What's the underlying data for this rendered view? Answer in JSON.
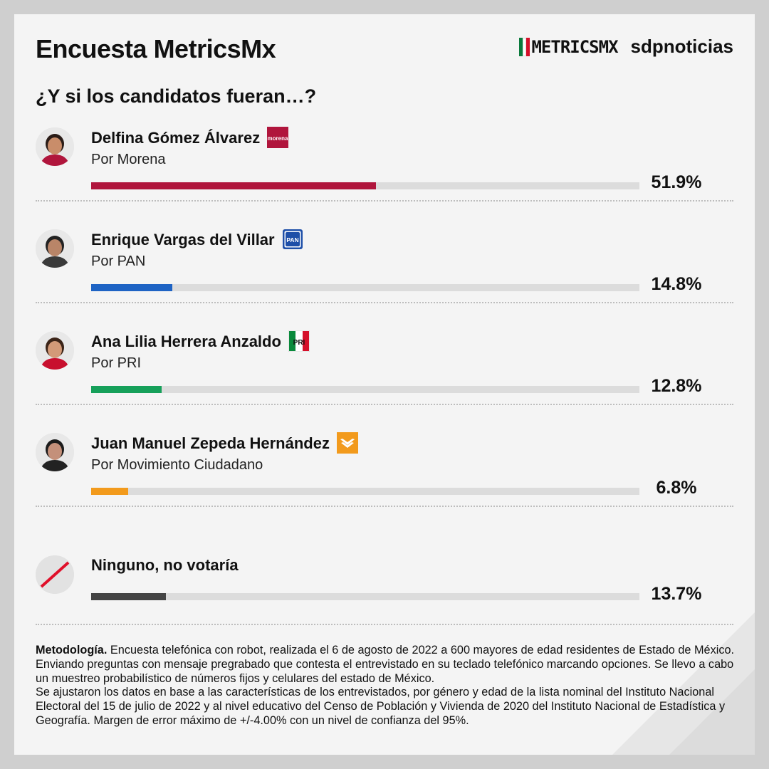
{
  "header": {
    "title": "Encuesta MetricsMx",
    "subtitle": "¿Y si los candidatos fueran…?",
    "logo_metrics": "METRICSMX",
    "logo_sdp": "sdpnoticias",
    "flag_colors": [
      "#0a7a3c",
      "#ffffff",
      "#d5102a"
    ]
  },
  "chart_data": {
    "type": "bar",
    "orientation": "horizontal",
    "xlim": [
      0,
      100
    ],
    "categories": [
      "Delfina Gómez Álvarez",
      "Enrique Vargas del Villar",
      "Ana Lilia Herrera Anzaldo",
      "Juan Manuel Zepeda Hernández",
      "Ninguno, no votaría"
    ],
    "values": [
      51.9,
      14.8,
      12.8,
      6.8,
      13.7
    ],
    "items": [
      {
        "name": "Delfina Gómez Álvarez",
        "party": "Por Morena",
        "value": 51.9,
        "label": "51.9%",
        "color": "#b0153c",
        "badge": "morena-logo-icon",
        "badge_text": "morena"
      },
      {
        "name": "Enrique Vargas del Villar",
        "party": "Por PAN",
        "value": 14.8,
        "label": "14.8%",
        "color": "#1e63c4",
        "badge": "pan-logo-icon",
        "badge_text": "PAN"
      },
      {
        "name": "Ana Lilia Herrera Anzaldo",
        "party": "Por PRI",
        "value": 12.8,
        "label": "12.8%",
        "color": "#16a05a",
        "badge": "pri-logo-icon",
        "badge_text": "PRI"
      },
      {
        "name": "Juan Manuel Zepeda Hernández",
        "party": "Por Movimiento Ciudadano",
        "value": 6.8,
        "label": "6.8%",
        "color": "#f29a1c",
        "badge": "mc-logo-icon",
        "badge_text": ""
      },
      {
        "name": "Ninguno, no votaría",
        "party": "",
        "value": 13.7,
        "label": "13.7%",
        "color": "#444444",
        "badge": "",
        "badge_text": ""
      }
    ]
  },
  "methodology": {
    "label": "Metodología.",
    "text": " Encuesta telefónica con robot, realizada el 6 de agosto de 2022 a 600 mayores de edad residentes de Estado de México. Enviando preguntas con mensaje pregrabado que contesta el entrevistado en su teclado telefónico marcando opciones. Se llevo a cabo un muestreo probabilístico de números fijos y celulares del estado de México.",
    "text2": "Se ajustaron los datos en base a las características de los entrevistados, por género y edad de la lista nominal del Instituto Nacional Electoral del 15 de julio de 2022 y al nivel educativo del Censo de Población y Vivienda de 2020 del Instituto Nacional de Estadística y Geografía. Margen de error máximo de +/-4.00% con un nivel de confianza del 95%."
  }
}
